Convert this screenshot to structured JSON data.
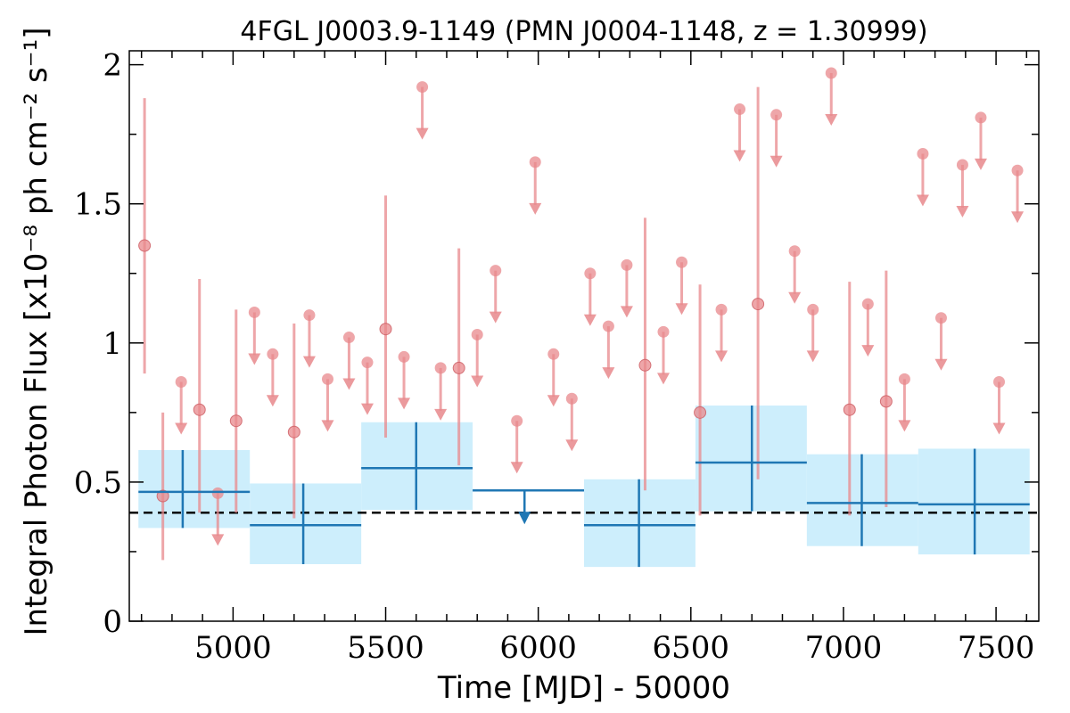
{
  "chart_data": {
    "type": "scatter",
    "title": "4FGL J0003.9-1149 (PMN J0004-1148, z = 1.30999)",
    "xlabel": "Time [MJD] - 50000",
    "ylabel": "Integral Photon Flux [x10⁻⁸ ph cm⁻² s⁻¹]",
    "xlim": [
      4660,
      7640
    ],
    "ylim": [
      0,
      2.05
    ],
    "xticks": [
      5000,
      5500,
      6000,
      6500,
      7000,
      7500
    ],
    "xtick_labels": [
      "5000",
      "5500",
      "6000",
      "6500",
      "7000",
      "7500"
    ],
    "yticks": [
      0,
      0.5,
      1,
      1.5,
      2
    ],
    "ytick_labels": [
      "0",
      "0.5",
      "1",
      "1.5",
      "2"
    ],
    "reference_line": 0.39,
    "colors": {
      "short_bins": "#e8888c",
      "long_bins": "#1f77b4",
      "long_bins_band": "#cdeefc",
      "reference_line": "#000000"
    },
    "series": [
      {
        "kind": "short-bin detections",
        "points": [
          {
            "x": 4710,
            "y": 1.35,
            "ylo": 0.89,
            "yhi": 1.88
          },
          {
            "x": 4770,
            "y": 0.45,
            "ylo": 0.22,
            "yhi": 0.75
          },
          {
            "x": 4890,
            "y": 0.76,
            "ylo": 0.39,
            "yhi": 1.23
          },
          {
            "x": 5010,
            "y": 0.72,
            "ylo": 0.39,
            "yhi": 1.12
          },
          {
            "x": 5200,
            "y": 0.68,
            "ylo": 0.37,
            "yhi": 1.07
          },
          {
            "x": 5500,
            "y": 1.05,
            "ylo": 0.66,
            "yhi": 1.53
          },
          {
            "x": 5740,
            "y": 0.91,
            "ylo": 0.56,
            "yhi": 1.34
          },
          {
            "x": 6350,
            "y": 0.92,
            "ylo": 0.47,
            "yhi": 1.45
          },
          {
            "x": 6530,
            "y": 0.75,
            "ylo": 0.38,
            "yhi": 1.21
          },
          {
            "x": 6720,
            "y": 1.14,
            "ylo": 0.51,
            "yhi": 1.92
          },
          {
            "x": 7020,
            "y": 0.76,
            "ylo": 0.38,
            "yhi": 1.22
          },
          {
            "x": 7140,
            "y": 0.79,
            "ylo": 0.41,
            "yhi": 1.26
          }
        ]
      },
      {
        "kind": "short-bin upper limits",
        "points": [
          {
            "x": 4830,
            "y": 0.86
          },
          {
            "x": 4950,
            "y": 0.46
          },
          {
            "x": 5070,
            "y": 1.11
          },
          {
            "x": 5130,
            "y": 0.96
          },
          {
            "x": 5250,
            "y": 1.1
          },
          {
            "x": 5310,
            "y": 0.87
          },
          {
            "x": 5380,
            "y": 1.02
          },
          {
            "x": 5440,
            "y": 0.93
          },
          {
            "x": 5560,
            "y": 0.95
          },
          {
            "x": 5620,
            "y": 1.92
          },
          {
            "x": 5680,
            "y": 0.91
          },
          {
            "x": 5800,
            "y": 1.03
          },
          {
            "x": 5860,
            "y": 1.26
          },
          {
            "x": 5930,
            "y": 0.72
          },
          {
            "x": 5990,
            "y": 1.65
          },
          {
            "x": 6050,
            "y": 0.96
          },
          {
            "x": 6110,
            "y": 0.8
          },
          {
            "x": 6170,
            "y": 1.25
          },
          {
            "x": 6230,
            "y": 1.06
          },
          {
            "x": 6290,
            "y": 1.28
          },
          {
            "x": 6410,
            "y": 1.04
          },
          {
            "x": 6470,
            "y": 1.29
          },
          {
            "x": 6600,
            "y": 1.12
          },
          {
            "x": 6660,
            "y": 1.84
          },
          {
            "x": 6780,
            "y": 1.82
          },
          {
            "x": 6840,
            "y": 1.33
          },
          {
            "x": 6900,
            "y": 1.12
          },
          {
            "x": 6960,
            "y": 1.97
          },
          {
            "x": 7080,
            "y": 1.14
          },
          {
            "x": 7200,
            "y": 0.87
          },
          {
            "x": 7260,
            "y": 1.68
          },
          {
            "x": 7320,
            "y": 1.09
          },
          {
            "x": 7390,
            "y": 1.64
          },
          {
            "x": 7450,
            "y": 1.81
          },
          {
            "x": 7510,
            "y": 0.86
          },
          {
            "x": 7570,
            "y": 1.62
          }
        ]
      },
      {
        "kind": "long-bin detections",
        "bins": [
          {
            "x0": 4690,
            "x1": 5055,
            "xc": 4835,
            "y": 0.465,
            "ylo": 0.335,
            "yhi": 0.615
          },
          {
            "x0": 5055,
            "x1": 5420,
            "xc": 5230,
            "y": 0.345,
            "ylo": 0.205,
            "yhi": 0.495
          },
          {
            "x0": 5420,
            "x1": 5785,
            "xc": 5600,
            "y": 0.55,
            "ylo": 0.4,
            "yhi": 0.715
          },
          {
            "x0": 6150,
            "x1": 6515,
            "xc": 6330,
            "y": 0.345,
            "ylo": 0.195,
            "yhi": 0.51
          },
          {
            "x0": 6515,
            "x1": 6880,
            "xc": 6700,
            "y": 0.57,
            "ylo": 0.395,
            "yhi": 0.775
          },
          {
            "x0": 6880,
            "x1": 7245,
            "xc": 7060,
            "y": 0.425,
            "ylo": 0.27,
            "yhi": 0.6
          },
          {
            "x0": 7245,
            "x1": 7610,
            "xc": 7430,
            "y": 0.42,
            "ylo": 0.24,
            "yhi": 0.62
          }
        ]
      },
      {
        "kind": "long-bin upper limit",
        "bins": [
          {
            "x0": 5785,
            "x1": 6150,
            "xc": 5955,
            "y": 0.47
          }
        ]
      }
    ]
  }
}
